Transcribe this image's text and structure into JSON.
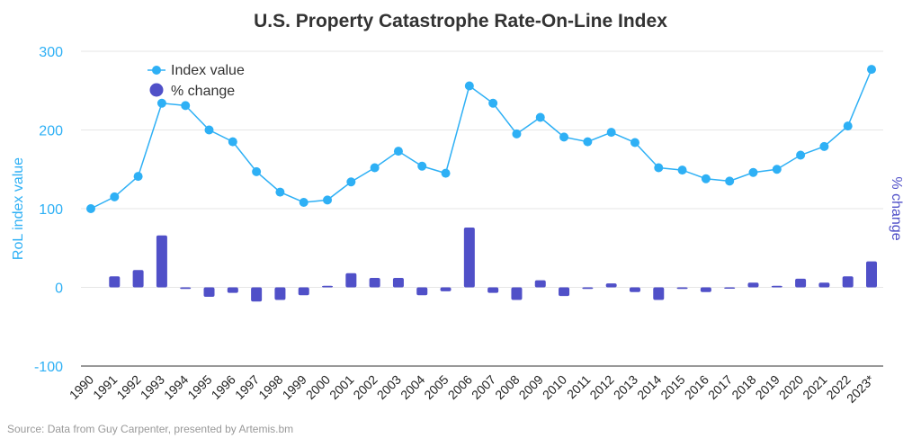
{
  "chart_data": {
    "type": "line+bar",
    "title": "U.S. Property Catastrophe Rate-On-Line Index",
    "source": "Source: Data from Guy Carpenter, presented by Artemis.bm",
    "ylabel": "RoL index value",
    "y2label": "% change",
    "ylim": [
      -100,
      300
    ],
    "yticks": [
      300,
      200,
      100,
      0,
      -100
    ],
    "ytick_labels": [
      "300",
      "200",
      "100",
      "0",
      "-100"
    ],
    "grid": true,
    "legend_position": "top-left",
    "categories": [
      "1990",
      "1991",
      "1992",
      "1993",
      "1994",
      "1995",
      "1996",
      "1997",
      "1998",
      "1999",
      "2000",
      "2001",
      "2002",
      "2003",
      "2004",
      "2005",
      "2006",
      "2007",
      "2008",
      "2009",
      "2010",
      "2011",
      "2012",
      "2013",
      "2014",
      "2015",
      "2016",
      "2017",
      "2018",
      "2019",
      "2020",
      "2021",
      "2022",
      "2023*"
    ],
    "series": [
      {
        "name": "Index value",
        "type": "line",
        "color": "#2eb0f5",
        "values": [
          100,
          115,
          141,
          234,
          231,
          200,
          185,
          147,
          121,
          108,
          111,
          134,
          152,
          173,
          154,
          145,
          256,
          234,
          195,
          216,
          191,
          185,
          197,
          184,
          152,
          149,
          138,
          135,
          146,
          150,
          168,
          179,
          205,
          277
        ]
      },
      {
        "name": "% change",
        "type": "bar",
        "color": "#5050c8",
        "values": [
          0,
          14,
          22,
          66,
          -2,
          -12,
          -7,
          -18,
          -16,
          -10,
          2,
          18,
          12,
          12,
          -10,
          -5,
          76,
          -7,
          -16,
          9,
          -11,
          -2,
          5,
          -6,
          -16,
          -2,
          -6,
          -1,
          6,
          2,
          11,
          6,
          14,
          33
        ]
      }
    ]
  }
}
